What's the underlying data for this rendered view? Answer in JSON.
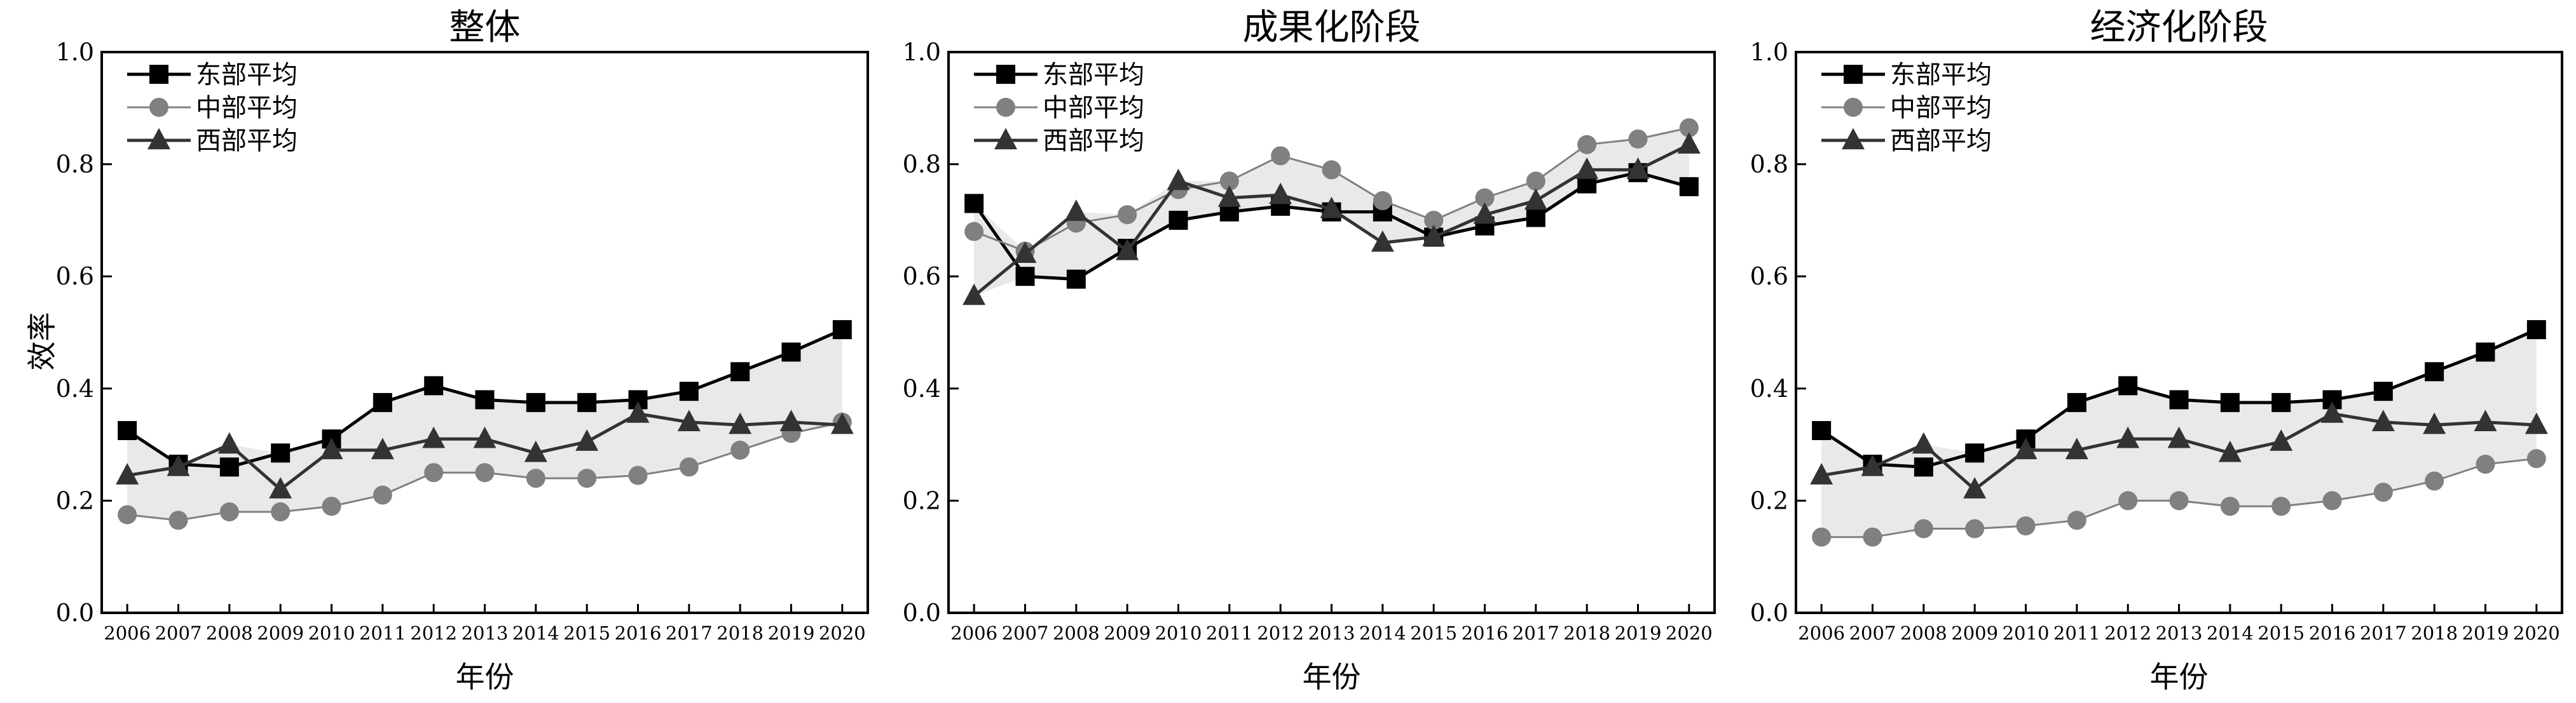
{
  "chart_data": [
    {
      "type": "line",
      "title": "整体",
      "xlabel": "年份",
      "ylabel": "效率",
      "ylim": [
        0.0,
        1.0
      ],
      "yticks": [
        "0.0",
        "0.2",
        "0.4",
        "0.6",
        "0.8",
        "1.0"
      ],
      "categories": [
        "2006",
        "2007",
        "2008",
        "2009",
        "2010",
        "2011",
        "2012",
        "2013",
        "2014",
        "2015",
        "2016",
        "2017",
        "2018",
        "2019",
        "2020"
      ],
      "legend_position": "top-left",
      "grid": false,
      "series": [
        {
          "name": "东部平均",
          "marker": "square",
          "color": "#000000",
          "values": [
            0.325,
            0.265,
            0.26,
            0.285,
            0.31,
            0.375,
            0.405,
            0.38,
            0.375,
            0.375,
            0.38,
            0.395,
            0.43,
            0.465,
            0.505
          ]
        },
        {
          "name": "中部平均",
          "marker": "circle",
          "color": "#808080",
          "values": [
            0.175,
            0.165,
            0.18,
            0.18,
            0.19,
            0.21,
            0.25,
            0.25,
            0.24,
            0.24,
            0.245,
            0.26,
            0.29,
            0.32,
            0.34
          ]
        },
        {
          "name": "西部平均",
          "marker": "triangle",
          "color": "#333333",
          "values": [
            0.245,
            0.26,
            0.3,
            0.22,
            0.29,
            0.29,
            0.31,
            0.31,
            0.285,
            0.305,
            0.355,
            0.34,
            0.335,
            0.34,
            0.335
          ]
        }
      ]
    },
    {
      "type": "line",
      "title": "成果化阶段",
      "xlabel": "年份",
      "ylabel": "",
      "ylim": [
        0.0,
        1.0
      ],
      "yticks": [
        "0.0",
        "0.2",
        "0.4",
        "0.6",
        "0.8",
        "1.0"
      ],
      "categories": [
        "2006",
        "2007",
        "2008",
        "2009",
        "2010",
        "2011",
        "2012",
        "2013",
        "2014",
        "2015",
        "2016",
        "2017",
        "2018",
        "2019",
        "2020"
      ],
      "legend_position": "top-left",
      "grid": false,
      "series": [
        {
          "name": "东部平均",
          "marker": "square",
          "color": "#000000",
          "values": [
            0.73,
            0.6,
            0.595,
            0.65,
            0.7,
            0.715,
            0.725,
            0.715,
            0.715,
            0.67,
            0.69,
            0.705,
            0.765,
            0.785,
            0.76
          ]
        },
        {
          "name": "中部平均",
          "marker": "circle",
          "color": "#808080",
          "values": [
            0.68,
            0.645,
            0.695,
            0.71,
            0.755,
            0.77,
            0.815,
            0.79,
            0.735,
            0.7,
            0.74,
            0.77,
            0.835,
            0.845,
            0.865
          ]
        },
        {
          "name": "西部平均",
          "marker": "triangle",
          "color": "#333333",
          "values": [
            0.565,
            0.64,
            0.715,
            0.645,
            0.77,
            0.74,
            0.745,
            0.72,
            0.66,
            0.67,
            0.71,
            0.735,
            0.79,
            0.79,
            0.835
          ]
        }
      ]
    },
    {
      "type": "line",
      "title": "经济化阶段",
      "xlabel": "年份",
      "ylabel": "",
      "ylim": [
        0.0,
        1.0
      ],
      "yticks": [
        "0.0",
        "0.2",
        "0.4",
        "0.6",
        "0.8",
        "1.0"
      ],
      "categories": [
        "2006",
        "2007",
        "2008",
        "2009",
        "2010",
        "2011",
        "2012",
        "2013",
        "2014",
        "2015",
        "2016",
        "2017",
        "2018",
        "2019",
        "2020"
      ],
      "legend_position": "top-left",
      "grid": false,
      "series": [
        {
          "name": "东部平均",
          "marker": "square",
          "color": "#000000",
          "values": [
            0.325,
            0.265,
            0.26,
            0.285,
            0.31,
            0.375,
            0.405,
            0.38,
            0.375,
            0.375,
            0.38,
            0.395,
            0.43,
            0.465,
            0.505
          ]
        },
        {
          "name": "中部平均",
          "marker": "circle",
          "color": "#808080",
          "values": [
            0.135,
            0.135,
            0.15,
            0.15,
            0.155,
            0.165,
            0.2,
            0.2,
            0.19,
            0.19,
            0.2,
            0.215,
            0.235,
            0.265,
            0.275
          ]
        },
        {
          "name": "西部平均",
          "marker": "triangle",
          "color": "#333333",
          "values": [
            0.245,
            0.26,
            0.3,
            0.22,
            0.29,
            0.29,
            0.31,
            0.31,
            0.285,
            0.305,
            0.355,
            0.34,
            0.335,
            0.34,
            0.335
          ]
        }
      ]
    }
  ]
}
